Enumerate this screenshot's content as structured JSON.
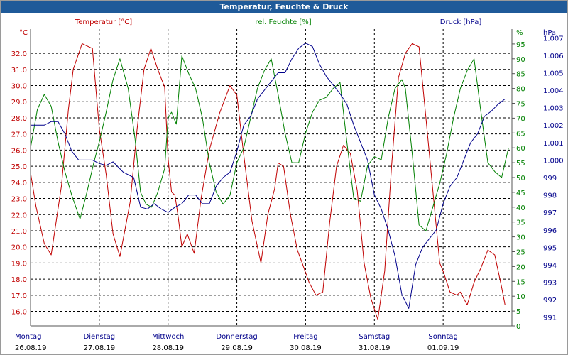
{
  "window": {
    "title": "Temperatur, Feuchte & Druck"
  },
  "colors": {
    "temperature": "#c00000",
    "humidity": "#008000",
    "pressure": "#00008b",
    "grid": "#000000",
    "titlebar": "#1f5a99"
  },
  "chart_data": {
    "type": "line",
    "title": "Temperatur, Feuchte & Druck",
    "series_titles": {
      "temperature": "Temperatur [°C]",
      "humidity": "rel. Feuchte [%]",
      "pressure": "Druck [hPa]"
    },
    "axes": {
      "left": {
        "unit": "°C",
        "ticks": [
          "16.0",
          "17.0",
          "18.0",
          "19.0",
          "20.0",
          "21.0",
          "22.0",
          "23.0",
          "24.0",
          "25.0",
          "26.0",
          "27.0",
          "28.0",
          "29.0",
          "30.0",
          "31.0",
          "32.0"
        ],
        "range": [
          15.1,
          33.5
        ]
      },
      "right1": {
        "unit": "%",
        "ticks": [
          "0",
          "5",
          "10",
          "15",
          "20",
          "25",
          "30",
          "35",
          "40",
          "45",
          "50",
          "55",
          "60",
          "65",
          "70",
          "75",
          "80",
          "85",
          "90",
          "95"
        ],
        "range": [
          0,
          100
        ]
      },
      "right2": {
        "unit": "hPa",
        "ticks": [
          "991",
          "992",
          "993",
          "994",
          "995",
          "996",
          "997",
          "998",
          "999",
          "1.000",
          "1.001",
          "1.002",
          "1.003",
          "1.004",
          "1.005",
          "1.006",
          "1.007"
        ],
        "range": [
          990.5,
          1007.5
        ]
      }
    },
    "x_categories": [
      {
        "day": "Montag",
        "date": "26.08.19"
      },
      {
        "day": "Dienstag",
        "date": "27.08.19"
      },
      {
        "day": "Mittwoch",
        "date": "28.08.19"
      },
      {
        "day": "Donnerstag",
        "date": "29.08.19"
      },
      {
        "day": "Freitag",
        "date": "30.08.19"
      },
      {
        "day": "Samstag",
        "date": "31.08.19"
      },
      {
        "day": "Sonntag",
        "date": "01.09.19"
      }
    ],
    "x_range": [
      0,
      7
    ],
    "series": [
      {
        "name": "Temperatur [°C]",
        "key": "temperature",
        "axis": "left",
        "color": "#c00000",
        "x": [
          0,
          0.08,
          0.2,
          0.3,
          0.45,
          0.55,
          0.62,
          0.75,
          0.9,
          1.0,
          1.1,
          1.2,
          1.3,
          1.45,
          1.55,
          1.65,
          1.75,
          1.85,
          1.95,
          2.0,
          2.05,
          2.1,
          2.15,
          2.2,
          2.28,
          2.38,
          2.48,
          2.6,
          2.75,
          2.9,
          3.0,
          3.1,
          3.22,
          3.35,
          3.45,
          3.55,
          3.6,
          3.68,
          3.78,
          3.88,
          3.95,
          4.05,
          4.15,
          4.25,
          4.35,
          4.45,
          4.55,
          4.65,
          4.75,
          4.85,
          4.95,
          5.05,
          5.15,
          5.25,
          5.35,
          5.45,
          5.55,
          5.65,
          5.75,
          5.85,
          5.95,
          6.0,
          6.1,
          6.2,
          6.25,
          6.35,
          6.45,
          6.55,
          6.65,
          6.75,
          6.85,
          6.9
        ],
        "values": [
          24.6,
          22.5,
          20.2,
          19.5,
          23.8,
          28.5,
          31.0,
          32.6,
          32.3,
          27.3,
          24.5,
          20.8,
          19.4,
          22.8,
          27.3,
          31.0,
          32.3,
          31.0,
          29.9,
          25.5,
          23.4,
          23.2,
          21.8,
          20.0,
          20.8,
          19.6,
          23.0,
          26.0,
          28.3,
          30.0,
          29.4,
          25.7,
          21.6,
          19.0,
          22.0,
          23.6,
          25.2,
          25.0,
          22.0,
          19.8,
          19.0,
          17.8,
          17.0,
          17.2,
          21.5,
          25.0,
          26.3,
          25.8,
          23.5,
          19.0,
          16.8,
          15.5,
          18.5,
          25.0,
          30.5,
          32.0,
          32.6,
          32.4,
          28.0,
          23.5,
          19.0,
          18.5,
          17.2,
          17.0,
          17.2,
          16.4,
          17.8,
          18.7,
          19.8,
          19.5,
          17.5,
          16.4
        ]
      },
      {
        "name": "rel. Feuchte [%]",
        "key": "humidity",
        "axis": "right1",
        "color": "#008000",
        "x": [
          0,
          0.1,
          0.2,
          0.3,
          0.4,
          0.5,
          0.6,
          0.72,
          0.82,
          0.92,
          1.0,
          1.1,
          1.2,
          1.3,
          1.42,
          1.52,
          1.6,
          1.68,
          1.76,
          1.85,
          1.95,
          2.0,
          2.05,
          2.12,
          2.2,
          2.3,
          2.4,
          2.5,
          2.6,
          2.7,
          2.8,
          2.9,
          3.0,
          3.1,
          3.2,
          3.3,
          3.4,
          3.5,
          3.6,
          3.7,
          3.8,
          3.9,
          4.0,
          4.1,
          4.2,
          4.3,
          4.4,
          4.5,
          4.6,
          4.7,
          4.8,
          4.9,
          5.0,
          5.1,
          5.2,
          5.3,
          5.4,
          5.45,
          5.55,
          5.65,
          5.75,
          5.85,
          5.95,
          6.05,
          6.15,
          6.25,
          6.35,
          6.45,
          6.55,
          6.65,
          6.75,
          6.85,
          6.95
        ],
        "values": [
          60,
          73,
          78,
          74,
          62,
          52,
          44,
          36,
          45,
          55,
          62,
          72,
          83,
          90,
          80,
          63,
          45,
          41,
          40,
          45,
          53,
          70,
          72,
          68,
          91,
          85,
          80,
          70,
          55,
          45,
          41,
          44,
          55,
          60,
          70,
          80,
          86,
          90,
          78,
          65,
          55,
          55,
          65,
          72,
          76,
          77,
          80,
          82,
          62,
          43,
          42,
          54,
          57,
          56,
          70,
          80,
          83,
          80,
          58,
          34,
          32,
          40,
          48,
          58,
          70,
          80,
          86,
          90,
          72,
          55,
          52,
          50,
          60
        ]
      },
      {
        "name": "Druck [hPa]",
        "key": "pressure",
        "axis": "right2",
        "color": "#00008b",
        "x": [
          0,
          0.1,
          0.2,
          0.3,
          0.4,
          0.5,
          0.6,
          0.7,
          0.8,
          0.9,
          1.0,
          1.1,
          1.2,
          1.35,
          1.5,
          1.6,
          1.7,
          1.8,
          1.9,
          2.0,
          2.1,
          2.2,
          2.3,
          2.4,
          2.5,
          2.6,
          2.7,
          2.8,
          2.9,
          3.0,
          3.1,
          3.2,
          3.3,
          3.4,
          3.5,
          3.6,
          3.7,
          3.8,
          3.9,
          4.0,
          4.1,
          4.2,
          4.3,
          4.4,
          4.5,
          4.6,
          4.7,
          4.8,
          4.9,
          5.0,
          5.1,
          5.2,
          5.3,
          5.4,
          5.5,
          5.6,
          5.7,
          5.8,
          5.9,
          6.0,
          6.1,
          6.2,
          6.3,
          6.4,
          6.5,
          6.6,
          6.7,
          6.8,
          6.9
        ],
        "values": [
          1002.0,
          1002.0,
          1002.0,
          1002.2,
          1002.2,
          1001.5,
          1000.5,
          1000.0,
          1000.0,
          1000.0,
          999.8,
          999.7,
          999.9,
          999.3,
          999.0,
          997.3,
          997.2,
          997.5,
          997.2,
          997.0,
          997.3,
          997.5,
          998.0,
          998.0,
          997.5,
          997.5,
          998.5,
          999.0,
          999.3,
          1000.5,
          1002.0,
          1002.5,
          1003.5,
          1004.0,
          1004.5,
          1005.0,
          1005.0,
          1005.8,
          1006.4,
          1006.7,
          1006.5,
          1005.5,
          1004.8,
          1004.3,
          1003.8,
          1003.2,
          1002.0,
          1001.0,
          1000.0,
          998.0,
          997.2,
          996.0,
          994.5,
          992.3,
          991.5,
          994.0,
          995.0,
          995.5,
          996.0,
          997.5,
          998.5,
          999.0,
          1000.0,
          1001.0,
          1001.5,
          1002.5,
          1002.8,
          1003.2,
          1003.5
        ]
      }
    ]
  }
}
